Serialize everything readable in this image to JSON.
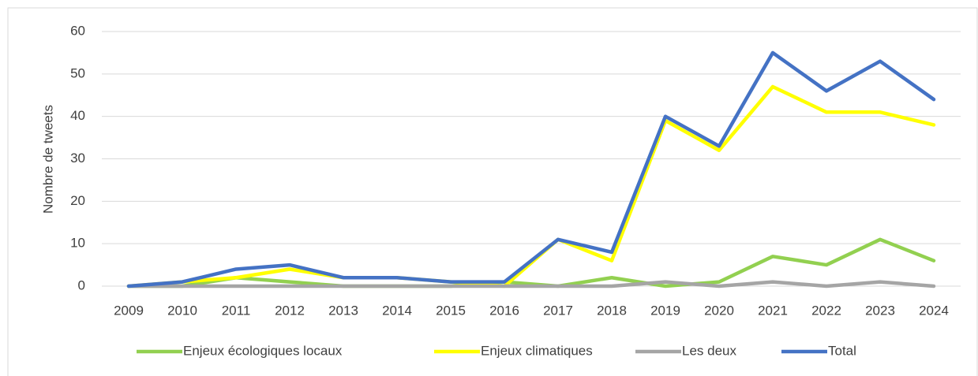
{
  "chart_data": {
    "type": "line",
    "y_label": "Nombre de tweets",
    "categories": [
      "2009",
      "2010",
      "2011",
      "2012",
      "2013",
      "2014",
      "2015",
      "2016",
      "2017",
      "2018",
      "2019",
      "2020",
      "2021",
      "2022",
      "2023",
      "2024"
    ],
    "series": [
      {
        "name": "Enjeux écologiques locaux",
        "color": "#92d050",
        "values": [
          0,
          0,
          2,
          1,
          0,
          0,
          0,
          1,
          0,
          2,
          0,
          1,
          7,
          5,
          11,
          6
        ]
      },
      {
        "name": "Enjeux climatiques",
        "color": "#ffff00",
        "values": [
          0,
          1,
          2,
          4,
          2,
          2,
          1,
          0,
          11,
          6,
          39,
          32,
          47,
          41,
          41,
          38
        ]
      },
      {
        "name": "Les deux",
        "color": "#a5a5a5",
        "values": [
          0,
          0,
          0,
          0,
          0,
          0,
          0,
          0,
          0,
          0,
          1,
          0,
          1,
          0,
          1,
          0
        ]
      },
      {
        "name": "Total",
        "color": "#4472c4",
        "values": [
          0,
          1,
          4,
          5,
          2,
          2,
          1,
          1,
          11,
          8,
          40,
          33,
          55,
          46,
          53,
          44
        ]
      }
    ],
    "ylim": [
      0,
      60
    ],
    "yticks": [
      0,
      10,
      20,
      30,
      40,
      50,
      60
    ],
    "grid": true,
    "legend": "bottom"
  }
}
